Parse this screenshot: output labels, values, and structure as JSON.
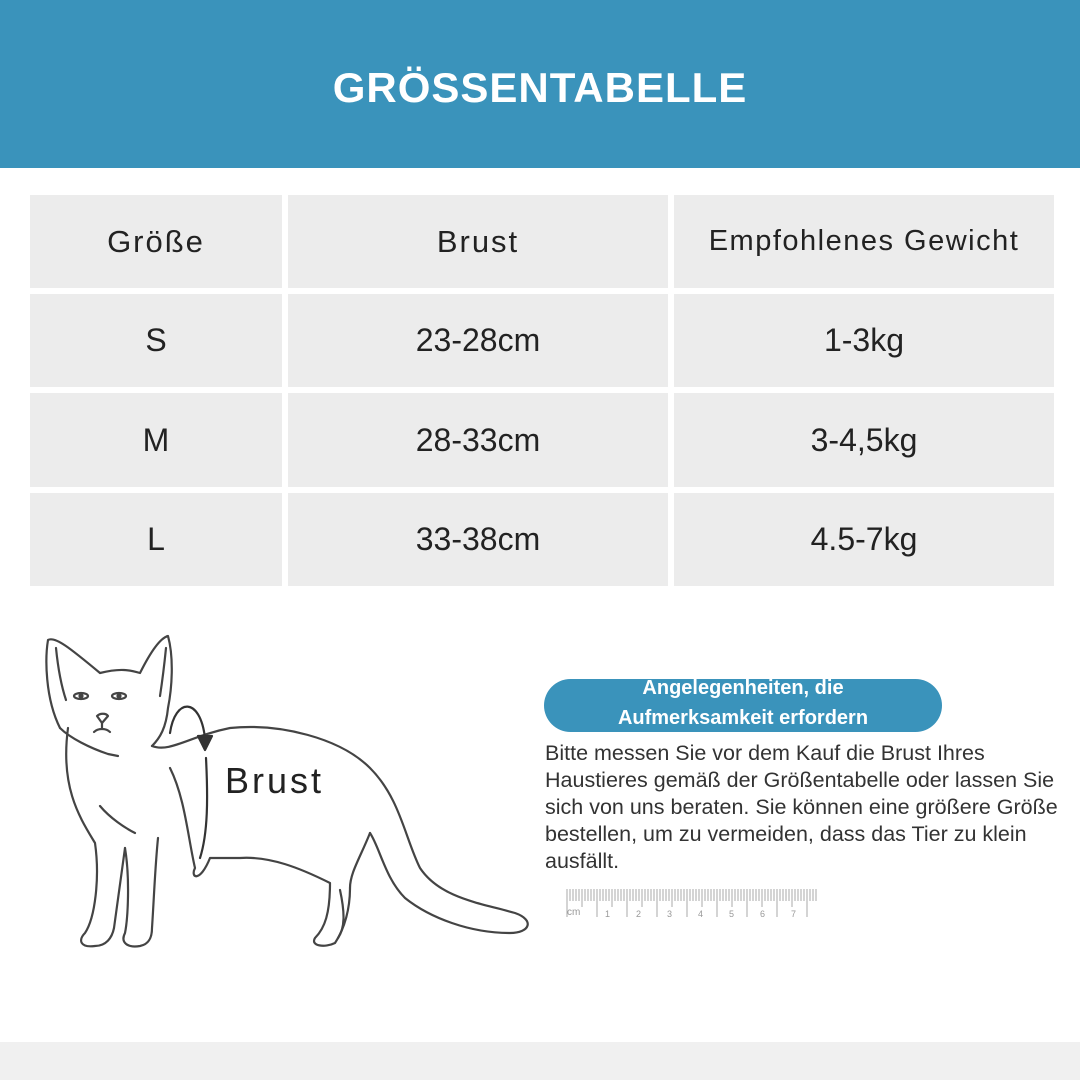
{
  "header": {
    "title": "GRÖSSENTABELLE"
  },
  "colors": {
    "accent": "#3a93bb",
    "cell": "#ececec"
  },
  "table": {
    "columns": [
      "Größe",
      "Brust",
      "Empfohlenes Gewicht"
    ],
    "rows": [
      [
        "S",
        "23-28cm",
        "1-3kg"
      ],
      [
        "M",
        "28-33cm",
        "3-4,5kg"
      ],
      [
        "L",
        "33-38cm",
        "4.5-7kg"
      ]
    ]
  },
  "illustration": {
    "label": "Brust",
    "icon": "cat-outline"
  },
  "notice": {
    "title_line1": "Angelegenheiten, die",
    "title_line2": "Aufmerksamkeit erfordern",
    "body": "Bitte messen Sie vor dem Kauf die Brust Ihres Haustieres gemäß der Größentabelle oder lassen Sie sich von uns beraten. Sie können eine größere Größe bestellen, um zu vermeiden, dass das Tier zu klein ausfällt."
  },
  "ruler": {
    "unit": "cm",
    "labels": [
      "1",
      "2",
      "3",
      "4",
      "5",
      "6",
      "7"
    ]
  }
}
